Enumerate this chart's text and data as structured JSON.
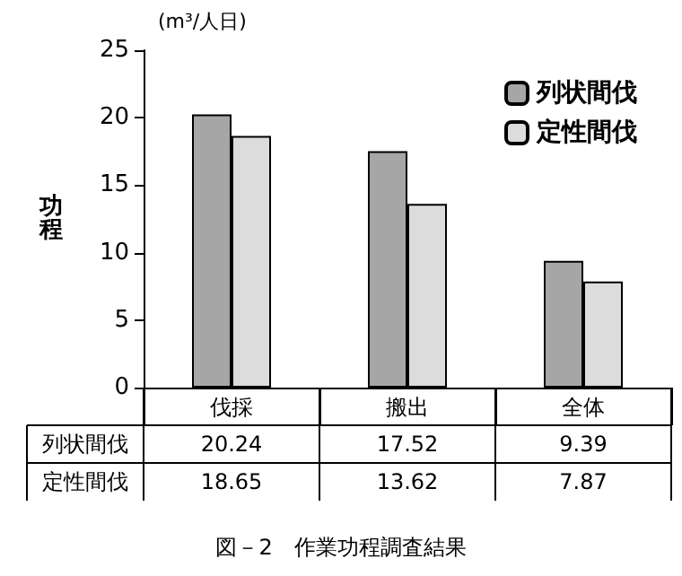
{
  "chart_data": {
    "type": "bar",
    "ylabel": "功程",
    "annotations": [
      "(m³/人日)",
      "図－2　作業功程調査結果"
    ],
    "categories": [
      "伐採",
      "搬出",
      "全体"
    ],
    "series": [
      {
        "name": "列状間伐",
        "color": "#a6a6a6",
        "values": [
          20.24,
          17.52,
          9.39
        ]
      },
      {
        "name": "定性間伐",
        "color": "#dcdcdc",
        "values": [
          18.65,
          13.62,
          7.87
        ]
      }
    ],
    "ylim": [
      0,
      25
    ],
    "yticks": [
      0,
      5,
      10,
      15,
      20,
      25
    ],
    "grid": false,
    "legend": "top right",
    "data_labels": true
  }
}
